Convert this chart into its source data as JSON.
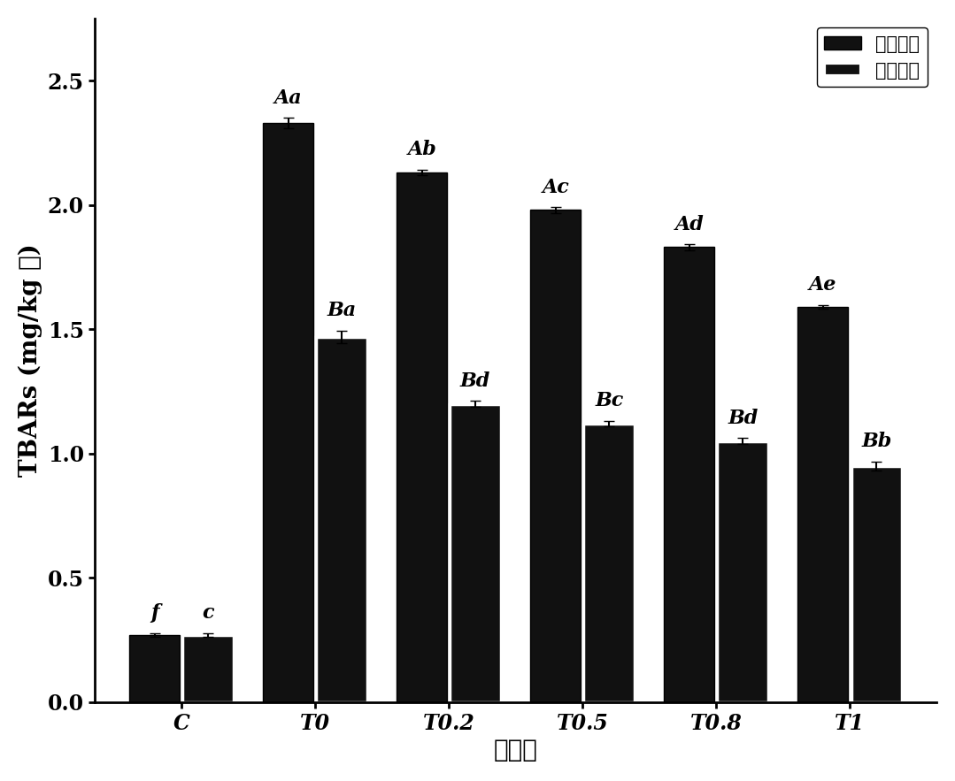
{
  "categories": [
    "C",
    "T0",
    "T0.2",
    "T0.5",
    "T0.8",
    "T1"
  ],
  "dark_values": [
    0.27,
    2.33,
    2.13,
    1.98,
    1.83,
    1.59
  ],
  "light_values": [
    0.27,
    1.47,
    1.2,
    1.12,
    1.05,
    0.95
  ],
  "dark_errors": [
    0.008,
    0.02,
    0.012,
    0.012,
    0.012,
    0.008
  ],
  "light_errors": [
    0.008,
    0.025,
    0.012,
    0.012,
    0.012,
    0.018
  ],
  "dark_color": "#111111",
  "light_color": "#111111",
  "light_edgecolor": "#ffffff",
  "dark_label": "普通油炸",
  "light_label": "空气油炸",
  "dark_labels": [
    "f",
    "Aa",
    "Ab",
    "Ac",
    "Ad",
    "Ae"
  ],
  "light_labels": [
    "c",
    "Ba",
    "Bd",
    "Bc",
    "Bd",
    "Bb"
  ],
  "ylabel": "TBARs (mg/kg 肉)",
  "xlabel": "处理组",
  "ylim": [
    0.0,
    2.75
  ],
  "yticks": [
    0.0,
    0.5,
    1.0,
    1.5,
    2.0,
    2.5
  ],
  "bar_width": 0.38,
  "background_color": "#ffffff",
  "tick_label_fontsize": 17,
  "axis_label_fontsize": 20,
  "legend_fontsize": 15,
  "annot_fontsize": 16,
  "bar_gap": 0.02
}
